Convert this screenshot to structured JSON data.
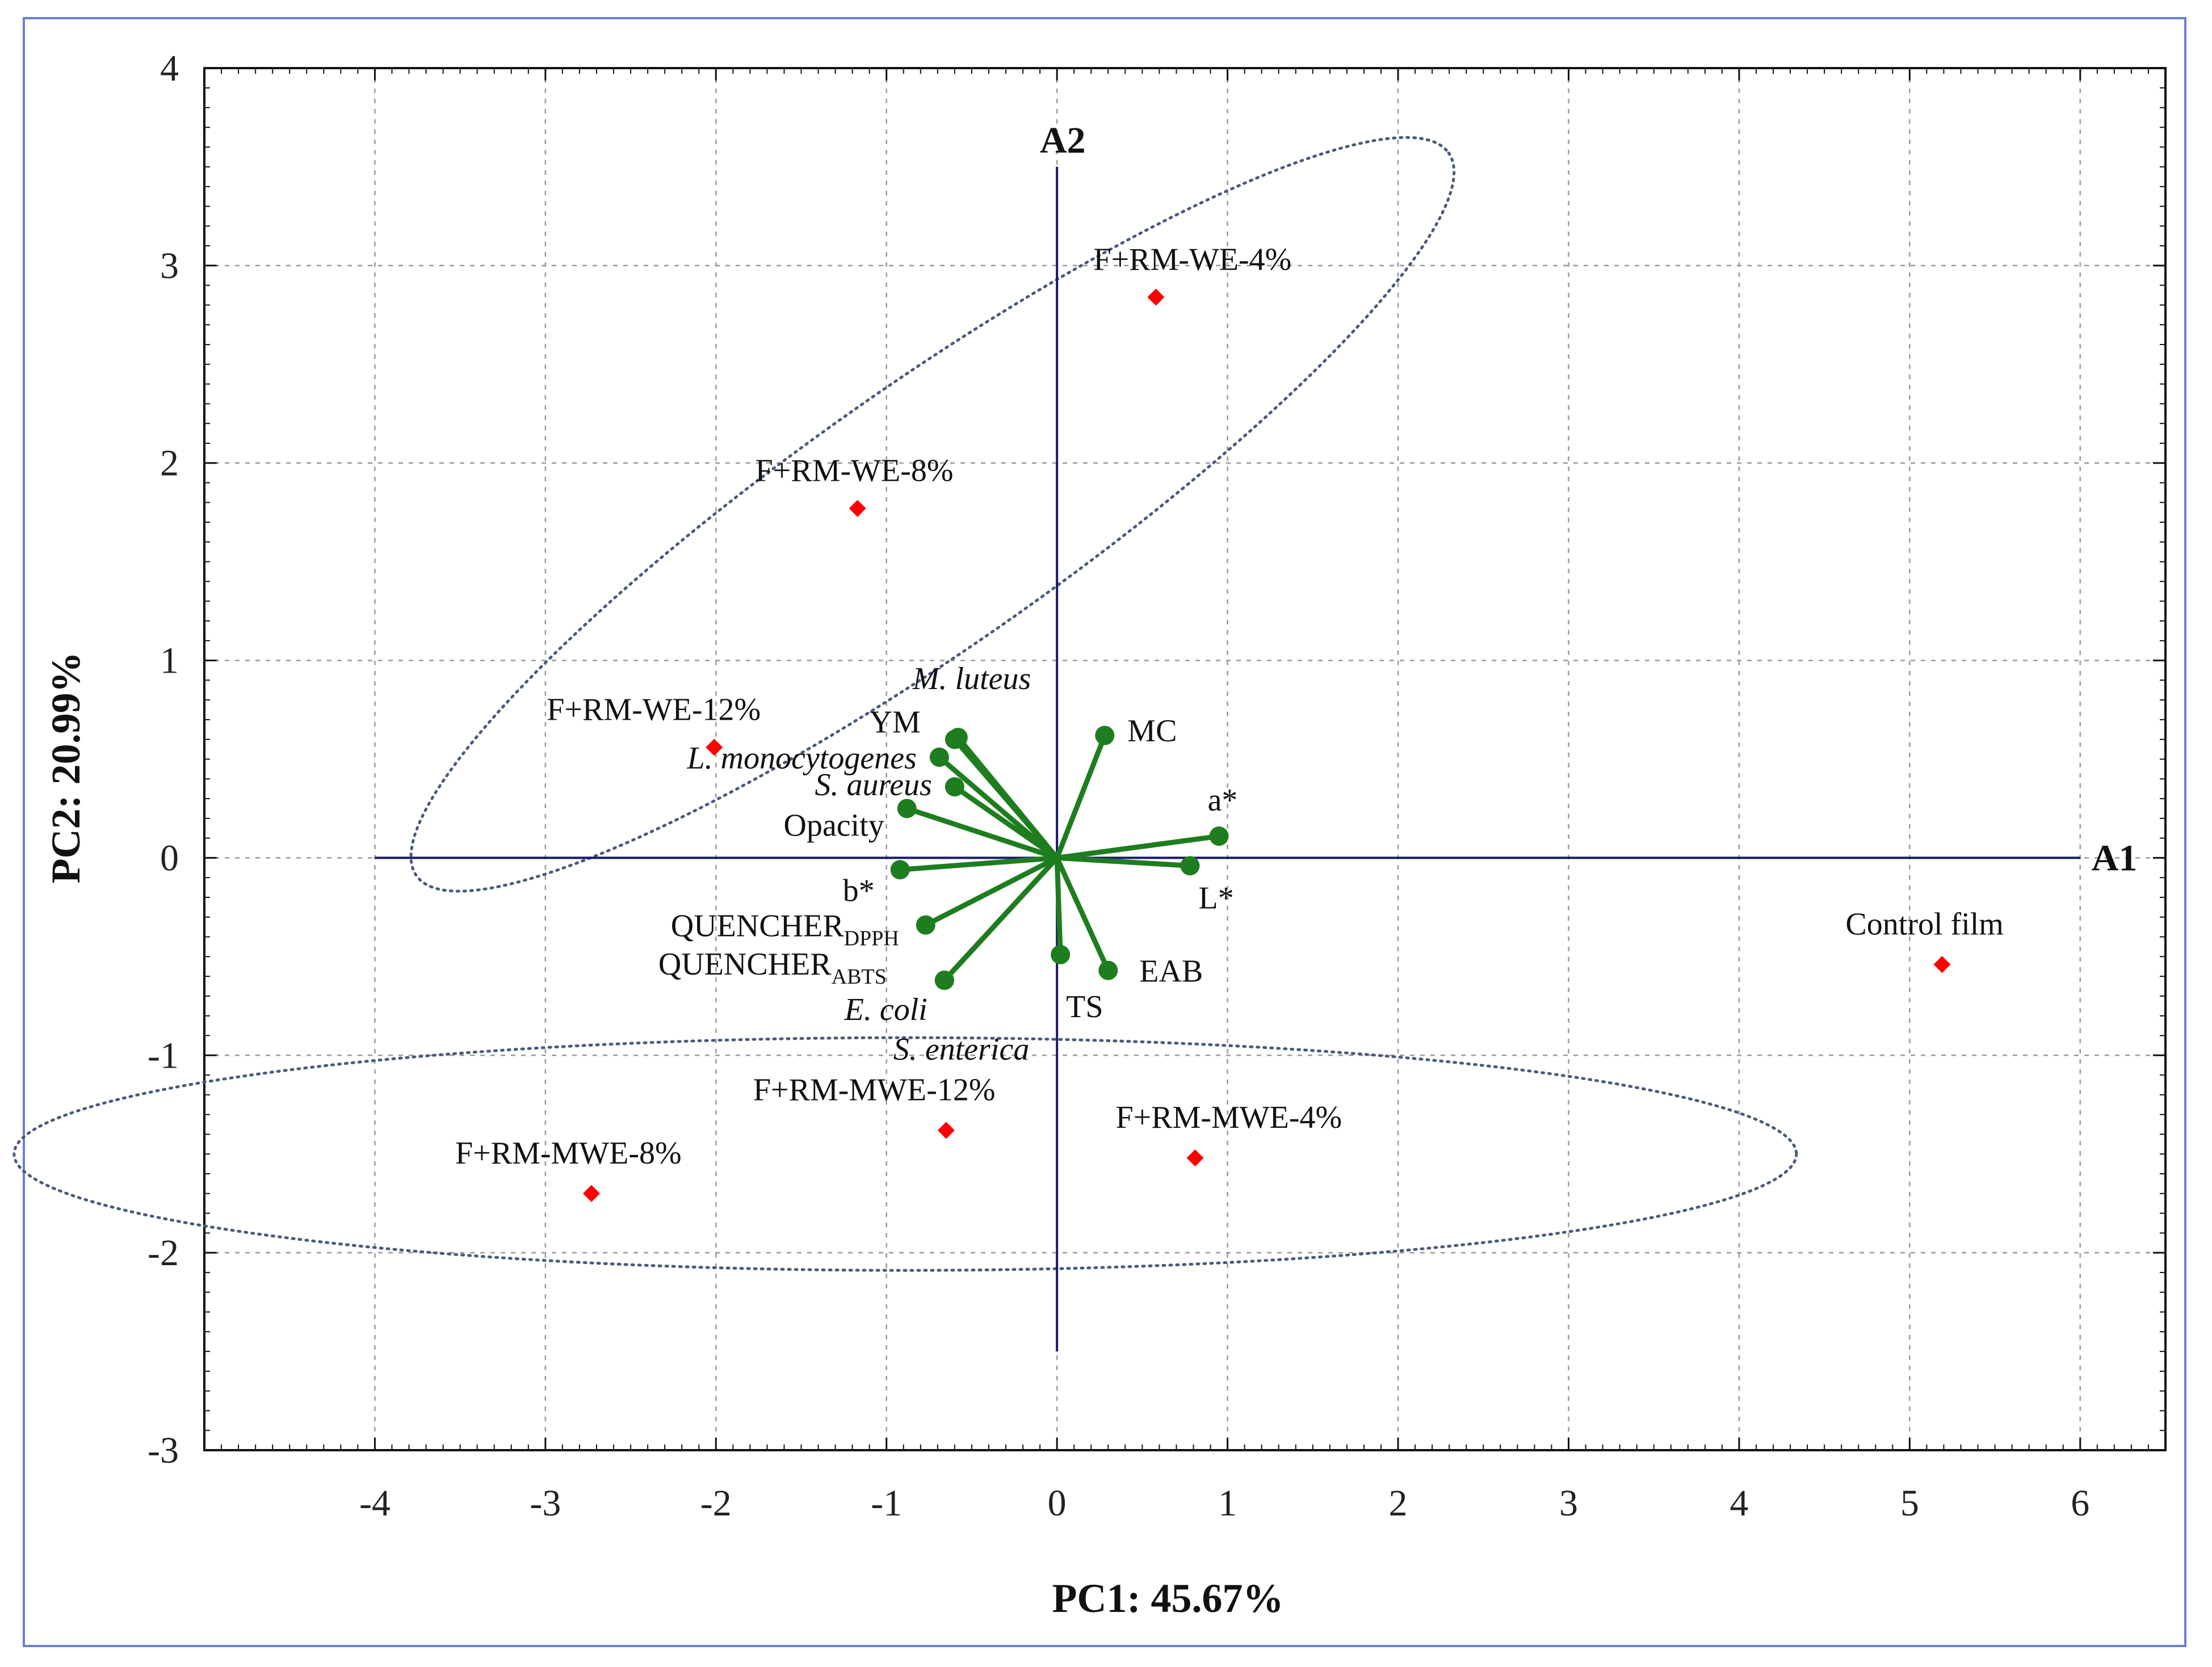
{
  "chart_data": {
    "type": "scatter",
    "subtype": "pca-biplot",
    "xlabel": "PC1: 45.67%",
    "ylabel": "PC2: 20.99%",
    "xlim": [
      -5,
      6.5
    ],
    "ylim": [
      -3,
      4
    ],
    "xticks": [
      -4,
      -3,
      -2,
      -1,
      0,
      1,
      2,
      3,
      4,
      5,
      6
    ],
    "yticks": [
      -3,
      -2,
      -1,
      0,
      1,
      2,
      3,
      4
    ],
    "grid": true,
    "reference_axes": {
      "h_label": "A1",
      "v_label": "A2"
    },
    "samples": [
      {
        "label": "F+RM-WE-4%",
        "x": 0.58,
        "y": 2.84
      },
      {
        "label": "F+RM-WE-8%",
        "x": -1.17,
        "y": 1.77
      },
      {
        "label": "F+RM-WE-12%",
        "x": -2.01,
        "y": 0.56
      },
      {
        "label": "F+RM-MWE-4%",
        "x": 0.81,
        "y": -1.52
      },
      {
        "label": "F+RM-MWE-8%",
        "x": -2.73,
        "y": -1.7
      },
      {
        "label": "F+RM-MWE-12%",
        "x": -0.65,
        "y": -1.38
      },
      {
        "label": "Control film",
        "x": 5.19,
        "y": -0.54
      }
    ],
    "loadings": [
      {
        "label": "M. luteus",
        "x": -0.58,
        "y": 0.61,
        "italic": true
      },
      {
        "label": "YM",
        "x": -0.6,
        "y": 0.6,
        "italic": false
      },
      {
        "label": "L. monocytogenes",
        "x": -0.69,
        "y": 0.51,
        "italic": true
      },
      {
        "label": "S. aureus",
        "x": -0.6,
        "y": 0.36,
        "italic": true
      },
      {
        "label": "Opacity",
        "x": -0.88,
        "y": 0.25,
        "italic": false
      },
      {
        "label": "b*",
        "x": -0.92,
        "y": -0.06,
        "italic": false
      },
      {
        "label": "QUENCHER",
        "sub": "DPPH",
        "x": -0.77,
        "y": -0.34,
        "italic": false
      },
      {
        "label": "QUENCHER",
        "sub": "ABTS",
        "x": -0.66,
        "y": -0.62,
        "italic": false
      },
      {
        "label": "E. coli",
        "x": -0.66,
        "y": -0.62,
        "italic": true
      },
      {
        "label": "S. enterica",
        "x": -0.66,
        "y": -0.62,
        "italic": true
      },
      {
        "label": "TS",
        "x": 0.02,
        "y": -0.49,
        "italic": false
      },
      {
        "label": "EAB",
        "x": 0.3,
        "y": -0.57,
        "italic": false
      },
      {
        "label": "MC",
        "x": 0.28,
        "y": 0.62,
        "italic": false
      },
      {
        "label": "a*",
        "x": 0.95,
        "y": 0.11,
        "italic": false
      },
      {
        "label": "L*",
        "x": 0.78,
        "y": -0.04,
        "italic": false
      }
    ],
    "groupings": [
      {
        "name": "water-extract-group"
      },
      {
        "name": "microwave-extract-group"
      }
    ],
    "colors": {
      "point": "#ff0000",
      "loading": "#1e7d1e",
      "refaxis": "#16166e",
      "ellipse": "#4a5a7a",
      "grid": "#9a9a9a"
    }
  }
}
